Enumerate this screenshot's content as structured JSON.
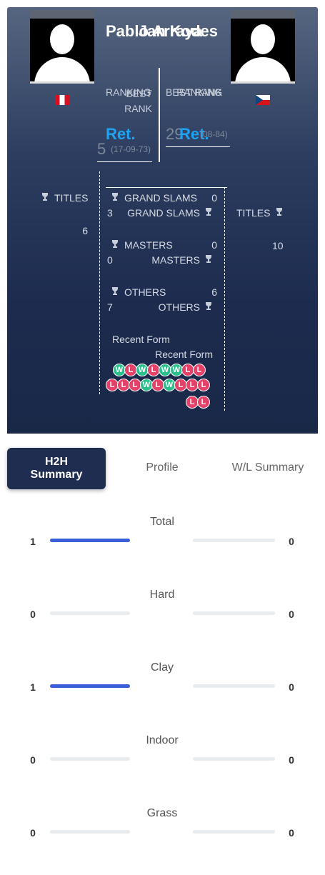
{
  "labels": {
    "ranking": "RANKING",
    "best_rank": "BEST RANK",
    "titles": "TITLES",
    "grand_slams": "GRAND SLAMS",
    "masters": "MASTERS",
    "others": "OTHERS",
    "recent_form": "Recent Form"
  },
  "left": {
    "name": "Pablo Arraya",
    "ranking": "Ret.",
    "best_rank": 5,
    "best_rank_date": "(17-09-73)",
    "titles": 6,
    "grand_slams": 0,
    "masters": 0,
    "others": 6,
    "recent_form": [
      "W",
      "L",
      "W",
      "L",
      "W",
      "W",
      "L",
      "L"
    ]
  },
  "right": {
    "name": "Jan Kodes",
    "ranking": "Ret.",
    "best_rank": 29,
    "best_rank_date": "(08-84)",
    "titles": 10,
    "grand_slams": 3,
    "masters": 0,
    "others": 7,
    "recent_form": [
      "L",
      "L",
      "L",
      "W",
      "L",
      "W",
      "L",
      "L",
      "L",
      "L",
      "L"
    ]
  },
  "tabs": {
    "items": [
      "H2H\nSummary",
      "Profile",
      "W/L Summary"
    ],
    "active": 0
  },
  "h2h": {
    "rows": [
      {
        "label": "Total",
        "left": 1,
        "right": 0
      },
      {
        "label": "Hard",
        "left": 0,
        "right": 0
      },
      {
        "label": "Clay",
        "left": 1,
        "right": 0
      },
      {
        "label": "Indoor",
        "left": 0,
        "right": 0
      },
      {
        "label": "Grass",
        "left": 0,
        "right": 0
      }
    ]
  }
}
